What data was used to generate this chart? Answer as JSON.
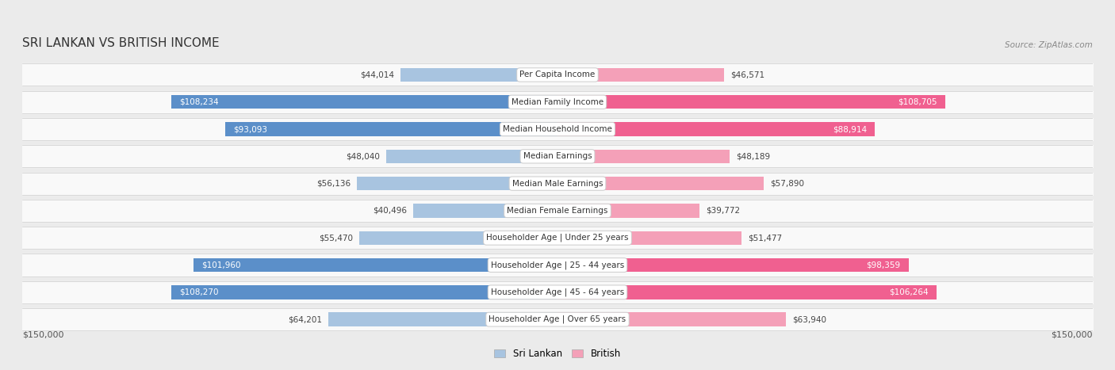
{
  "title": "SRI LANKAN VS BRITISH INCOME",
  "source": "Source: ZipAtlas.com",
  "categories": [
    "Per Capita Income",
    "Median Family Income",
    "Median Household Income",
    "Median Earnings",
    "Median Male Earnings",
    "Median Female Earnings",
    "Householder Age | Under 25 years",
    "Householder Age | 25 - 44 years",
    "Householder Age | 45 - 64 years",
    "Householder Age | Over 65 years"
  ],
  "sri_lankan_values": [
    44014,
    108234,
    93093,
    48040,
    56136,
    40496,
    55470,
    101960,
    108270,
    64201
  ],
  "british_values": [
    46571,
    108705,
    88914,
    48189,
    57890,
    39772,
    51477,
    98359,
    106264,
    63940
  ],
  "max_value": 150000,
  "sri_lankan_color_light": "#a8c4e0",
  "sri_lankan_color_dark": "#5b8fc9",
  "british_color_light": "#f4a0b8",
  "british_color_dark": "#f06090",
  "threshold": 70000,
  "background_color": "#ebebeb",
  "row_bg_color": "#f9f9f9",
  "title_fontsize": 11,
  "label_fontsize": 7.5,
  "value_fontsize": 7.5,
  "x_label_left": "$150,000",
  "x_label_right": "$150,000"
}
